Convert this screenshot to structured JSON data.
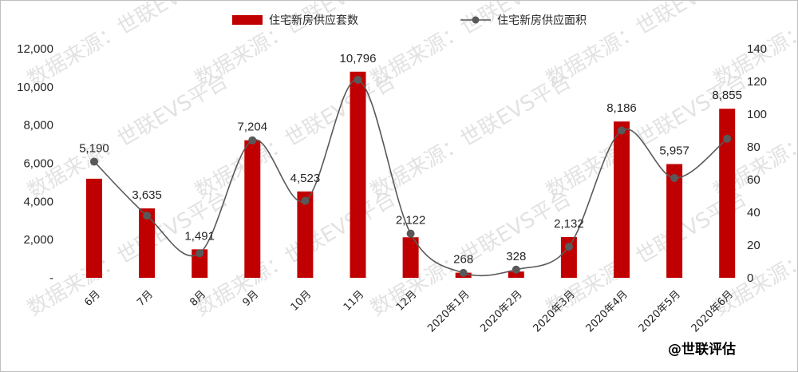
{
  "chart_data": {
    "type": "bar",
    "categories": [
      "6月",
      "7月",
      "8月",
      "9月",
      "10月",
      "11月",
      "12月",
      "2020年1月",
      "2020年2月",
      "2020年3月",
      "2020年4月",
      "2020年5月",
      "2020年6月"
    ],
    "series": [
      {
        "name": "住宅新房供应套数",
        "type": "bar",
        "axis": "left",
        "color": "#c00000",
        "values": [
          5190,
          3635,
          1491,
          7204,
          4523,
          10796,
          2122,
          268,
          328,
          2132,
          8186,
          5957,
          8855
        ],
        "data_labels": [
          "5,190",
          "3,635",
          "1,491",
          "7,204",
          "4,523",
          "10,796",
          "2,122",
          "268",
          "328",
          "2,132",
          "8,186",
          "5,957",
          "8,855"
        ]
      },
      {
        "name": "住宅新房供应面积",
        "type": "line",
        "axis": "right",
        "color": "#595959",
        "smooth": true,
        "values": [
          71,
          38,
          15,
          84,
          47,
          121,
          27,
          3,
          5,
          19,
          90,
          61,
          85
        ]
      }
    ],
    "y_left": {
      "min": 0,
      "max": 12000,
      "step": 2000,
      "tick_labels": [
        "-",
        "2,000",
        "4,000",
        "6,000",
        "8,000",
        "10,000",
        "12,000"
      ]
    },
    "y_right": {
      "min": 0,
      "max": 140,
      "step": 20,
      "tick_labels": [
        "0",
        "20",
        "40",
        "60",
        "80",
        "100",
        "120",
        "140"
      ]
    },
    "legend_position": "top",
    "grid": false
  },
  "watermark": {
    "text": "数据来源：世联EVS平台"
  },
  "brand": {
    "text": "@世联评估"
  }
}
